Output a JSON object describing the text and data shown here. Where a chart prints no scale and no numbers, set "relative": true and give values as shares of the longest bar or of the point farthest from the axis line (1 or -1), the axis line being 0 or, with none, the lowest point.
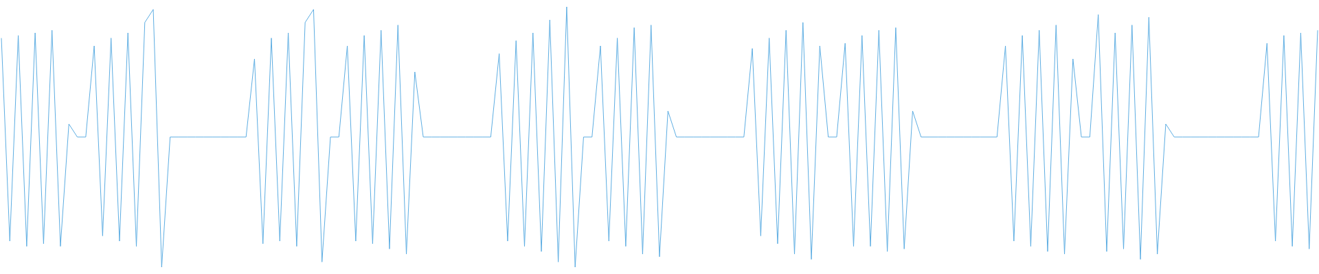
{
  "chart_data": {
    "type": "line",
    "relative": true,
    "color": "#5dade2",
    "marker": "none",
    "categories": [
      null,
      null,
      null,
      null,
      null,
      null,
      null,
      null,
      null,
      null,
      null,
      null,
      null,
      null,
      null,
      null,
      null,
      null,
      null,
      null,
      null,
      null,
      null,
      null,
      null,
      null,
      null,
      null,
      null,
      null,
      null,
      null,
      null,
      null,
      null,
      null,
      null,
      null,
      null,
      null,
      null,
      null,
      null,
      null,
      null,
      null,
      null,
      null,
      null,
      null,
      null,
      null,
      null,
      null,
      null,
      null,
      null,
      null,
      null,
      null,
      null,
      null,
      null,
      null,
      null,
      null,
      null,
      null,
      null,
      null,
      null,
      null,
      null,
      null,
      null,
      null,
      null,
      null,
      null,
      null,
      null,
      null,
      null,
      null,
      null,
      null,
      null,
      null,
      null,
      null,
      null,
      null,
      null,
      null,
      null,
      null,
      null,
      null,
      null,
      null,
      null,
      null,
      null,
      null,
      null,
      null,
      null,
      null,
      null,
      null,
      null,
      null,
      null,
      null,
      null,
      null,
      null,
      null,
      null,
      null,
      null,
      null,
      null,
      null,
      null,
      null,
      null,
      null,
      null,
      null,
      null,
      null,
      null,
      null,
      null,
      null,
      null,
      null,
      null,
      null,
      null,
      null,
      null,
      null,
      null,
      null,
      null,
      null,
      null,
      null,
      null,
      null,
      null,
      null,
      null,
      null,
      null
    ],
    "values": [
      0.88,
      0.1,
      0.89,
      0.08,
      0.9,
      0.09,
      0.91,
      0.08,
      0.55,
      0.5,
      0.5,
      0.85,
      0.12,
      0.88,
      0.1,
      0.9,
      0.08,
      0.94,
      0.99,
      0.0,
      0.5,
      0.5,
      0.5,
      0.5,
      0.5,
      0.5,
      0.5,
      0.5,
      0.5,
      0.5,
      0.8,
      0.09,
      0.88,
      0.1,
      0.9,
      0.08,
      0.94,
      0.99,
      0.02,
      0.5,
      0.5,
      0.85,
      0.1,
      0.89,
      0.09,
      0.91,
      0.07,
      0.93,
      0.05,
      0.75,
      0.5,
      0.5,
      0.5,
      0.5,
      0.5,
      0.5,
      0.5,
      0.5,
      0.5,
      0.82,
      0.1,
      0.87,
      0.08,
      0.9,
      0.06,
      0.95,
      0.02,
      1.0,
      0.0,
      0.5,
      0.5,
      0.85,
      0.1,
      0.88,
      0.08,
      0.92,
      0.05,
      0.93,
      0.04,
      0.6,
      0.5,
      0.5,
      0.5,
      0.5,
      0.5,
      0.5,
      0.5,
      0.5,
      0.5,
      0.84,
      0.12,
      0.88,
      0.09,
      0.91,
      0.05,
      0.94,
      0.03,
      0.85,
      0.5,
      0.5,
      0.86,
      0.08,
      0.89,
      0.08,
      0.91,
      0.06,
      0.92,
      0.07,
      0.6,
      0.5,
      0.5,
      0.5,
      0.5,
      0.5,
      0.5,
      0.5,
      0.5,
      0.5,
      0.5,
      0.85,
      0.1,
      0.89,
      0.08,
      0.91,
      0.06,
      0.93,
      0.05,
      0.8,
      0.5,
      0.5,
      0.97,
      0.06,
      0.9,
      0.07,
      0.93,
      0.03,
      0.96,
      0.05,
      0.55,
      0.5,
      0.5,
      0.5,
      0.5,
      0.5,
      0.5,
      0.5,
      0.5,
      0.5,
      0.5,
      0.5,
      0.86,
      0.1,
      0.89,
      0.08,
      0.9,
      0.07,
      0.91
    ]
  }
}
